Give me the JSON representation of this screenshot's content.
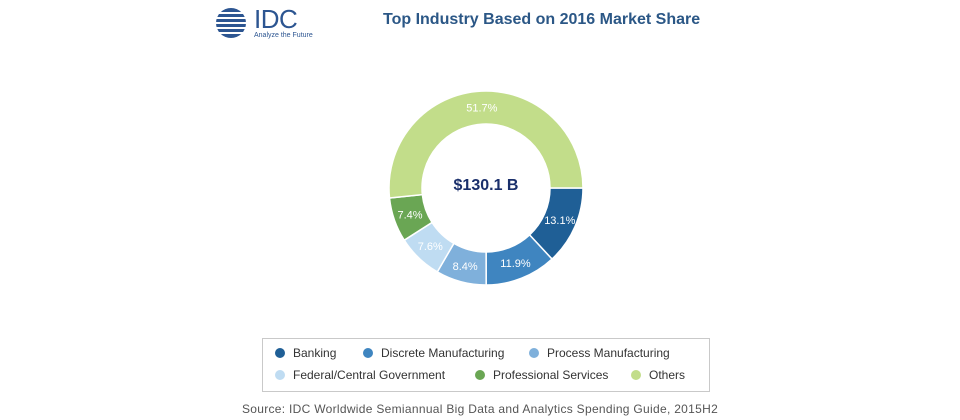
{
  "logo": {
    "text": "IDC",
    "tagline": "Analyze the Future"
  },
  "chart_data": {
    "type": "pie",
    "variant": "donut",
    "title": "Top Industry Based on 2016 Market Share",
    "center_label": "$130.1 B",
    "categories": [
      "Banking",
      "Discrete Manufacturing",
      "Process Manufacturing",
      "Federal/Central Government",
      "Professional Services",
      "Others"
    ],
    "values": [
      13.1,
      11.9,
      8.4,
      7.6,
      7.4,
      51.7
    ],
    "value_labels": [
      "13.1%",
      "11.9%",
      "8.4%",
      "7.6%",
      "7.4%",
      "51.7%"
    ],
    "colors": [
      "#1f5f96",
      "#3f85c0",
      "#7fb0db",
      "#bfdcf2",
      "#6aa654",
      "#c2dd8a"
    ],
    "legend_placement": "bottom"
  },
  "source": "Source: IDC Worldwide Semiannual Big Data and Analytics Spending Guide, 2015H2"
}
